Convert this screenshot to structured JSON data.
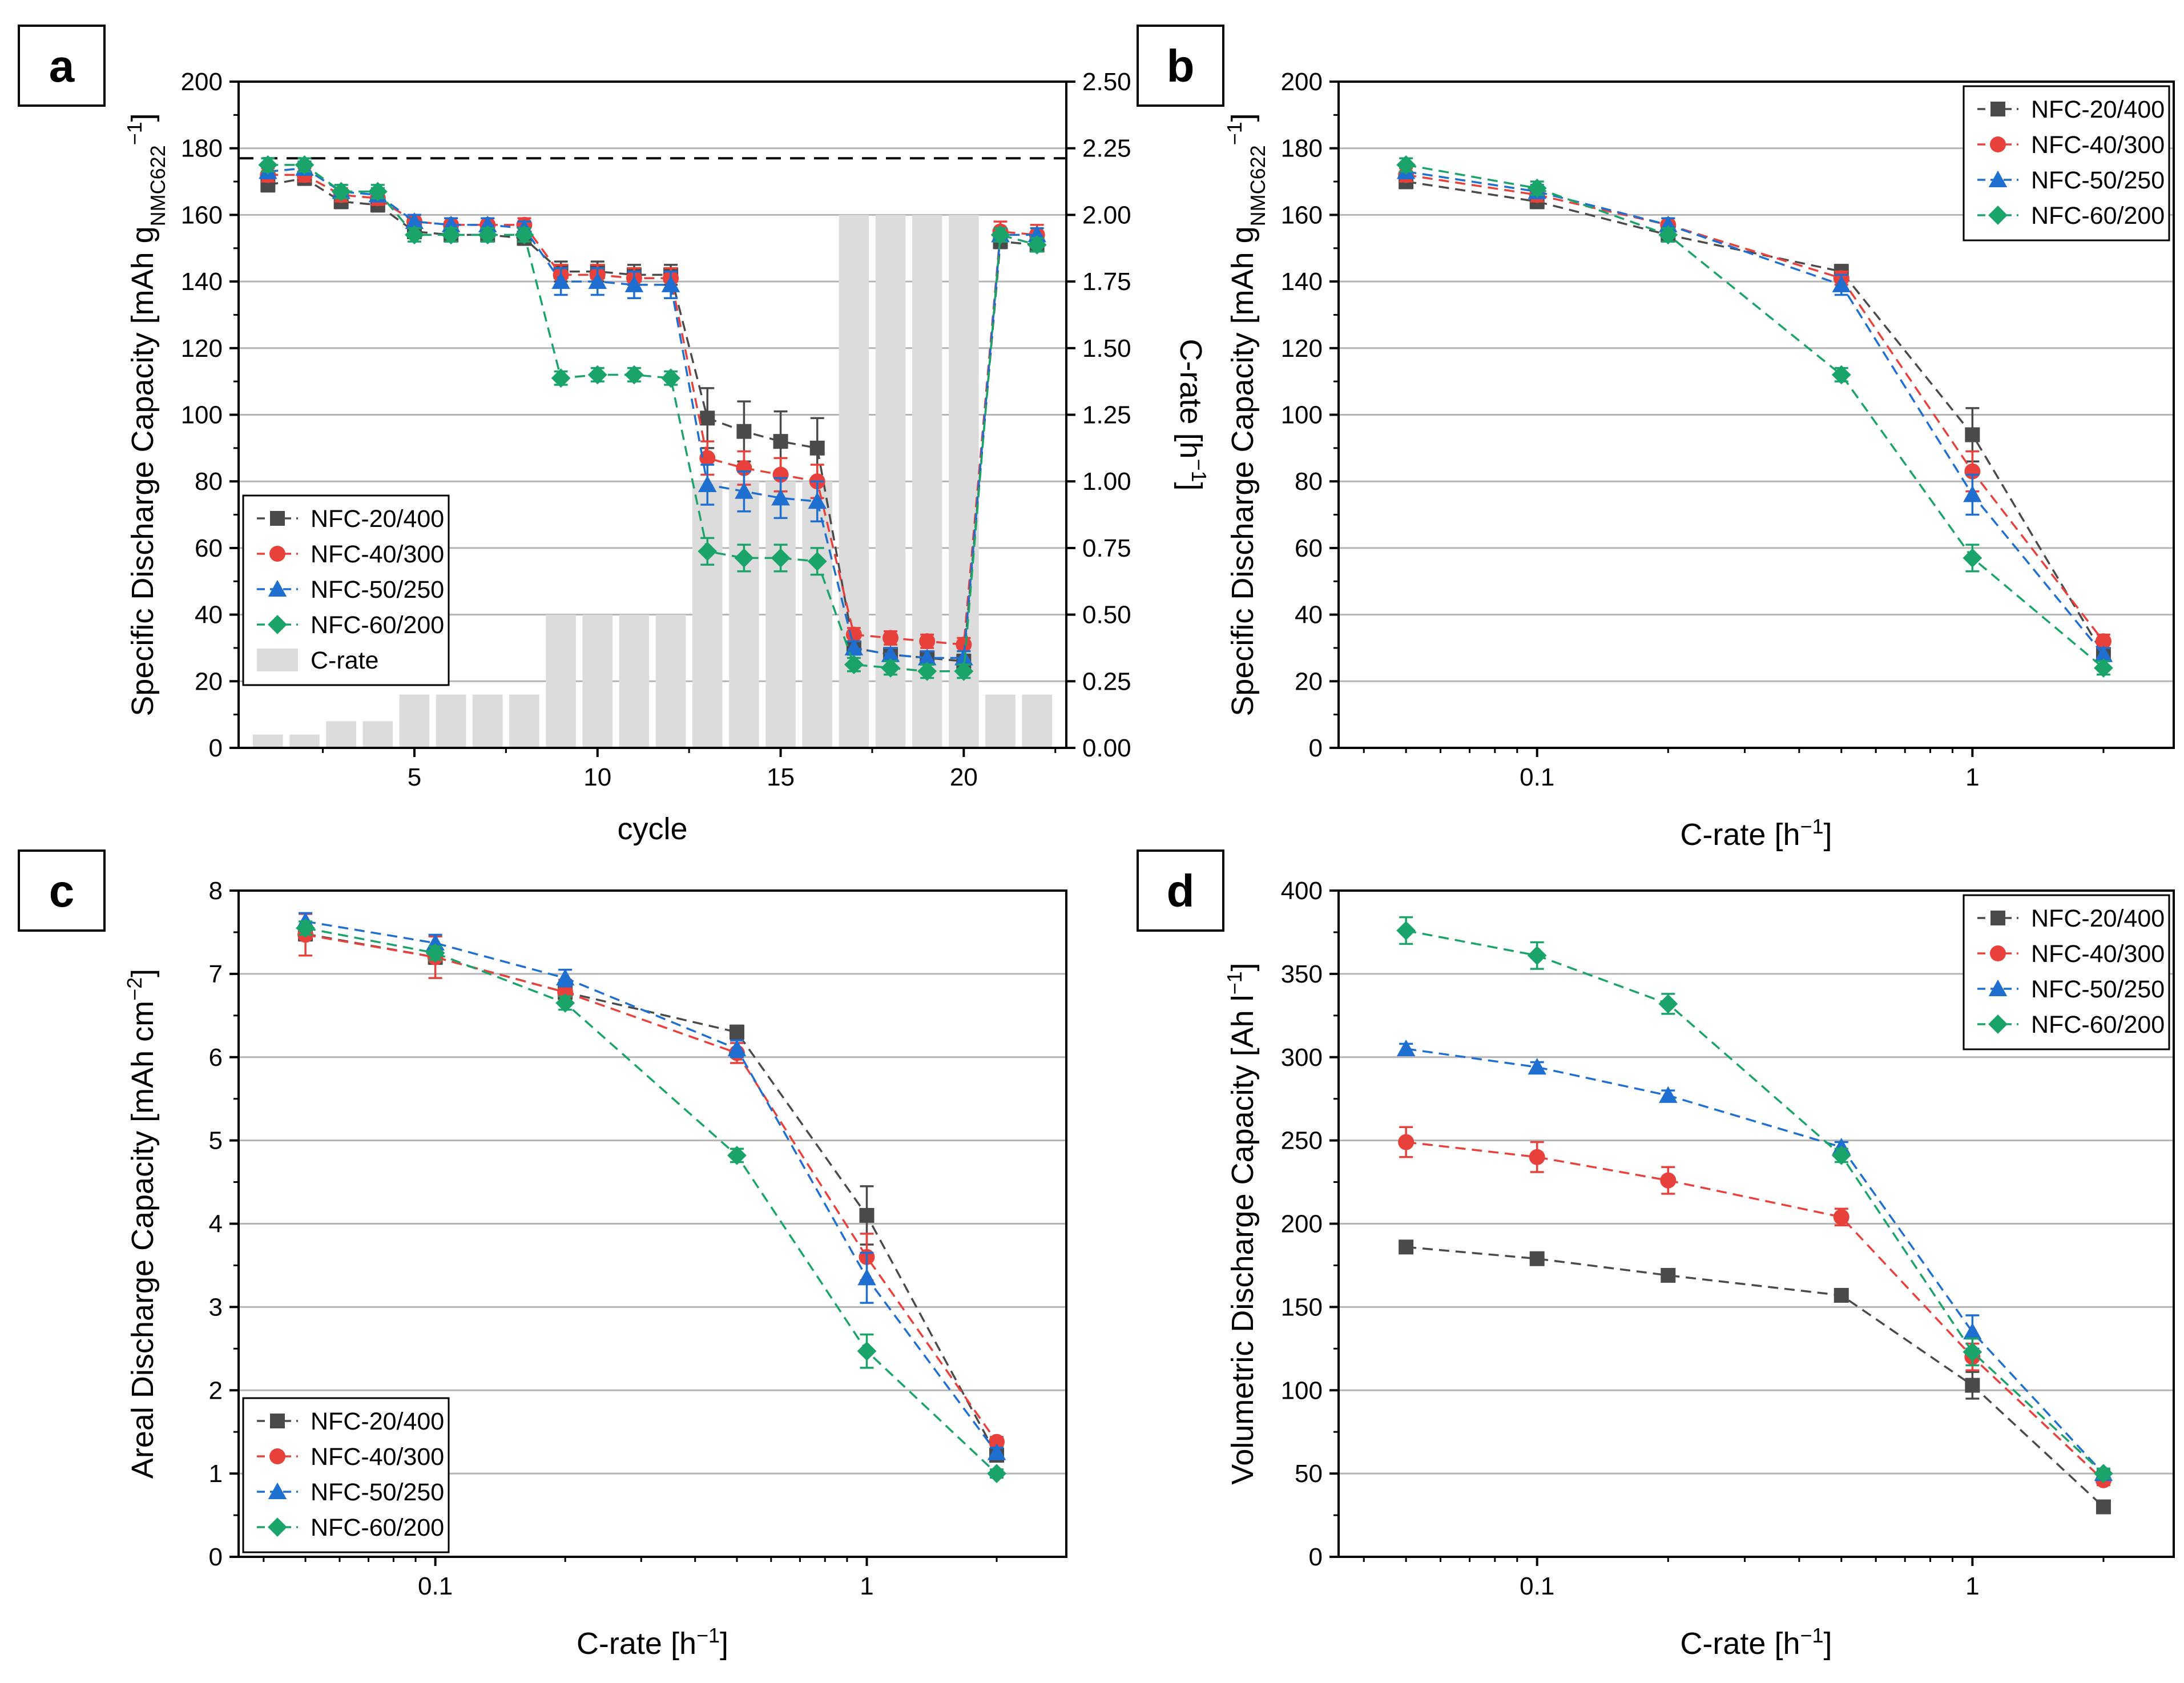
{
  "colors": {
    "NFC-20/400": "#4a4a4a",
    "NFC-40/300": "#e8403a",
    "NFC-50/250": "#1f6fd1",
    "NFC-60/200": "#1aa46a",
    "crate_bar": "#dcdcdc",
    "grid": "#b4b4b4"
  },
  "markers": {
    "NFC-20/400": "square",
    "NFC-40/300": "circle",
    "NFC-50/250": "triangle",
    "NFC-60/200": "diamond"
  },
  "chart_data": [
    {
      "id": "a",
      "panel_label": "a",
      "type": "line",
      "xlabel": "cycle",
      "ylabel": "Specific Discharge Capacity [mAh g_NMC622^-1]",
      "ylabel_parts": {
        "main": "Specific Discharge Capacity [mAh g",
        "sub": "NMC622",
        "sup": "−1",
        "end": "]"
      },
      "y2label": "C-rate [h^-1]",
      "y2label_parts": {
        "main": "C-rate [h",
        "sup": "−1",
        "end": "]"
      },
      "xscale": "linear",
      "xlim": [
        0.2,
        22.8
      ],
      "ylim": [
        0,
        200
      ],
      "y2lim": [
        0,
        2.5
      ],
      "xticks": [
        5,
        10,
        15,
        20
      ],
      "xtick_labels": [
        "5",
        "10",
        "15",
        "20"
      ],
      "yticks": [
        0,
        20,
        40,
        60,
        80,
        100,
        120,
        140,
        160,
        180,
        200
      ],
      "ytick_labels": [
        "0",
        "20",
        "40",
        "60",
        "80",
        "100",
        "120",
        "140",
        "160",
        "180",
        "200"
      ],
      "y2ticks": [
        0,
        0.25,
        0.5,
        0.75,
        1.0,
        1.25,
        1.5,
        1.75,
        2.0,
        2.25,
        2.5
      ],
      "y2tick_labels": [
        "0.00",
        "0.25",
        "0.50",
        "0.75",
        "1.00",
        "1.25",
        "1.50",
        "1.75",
        "2.00",
        "2.25",
        "2.50"
      ],
      "legend_position": "bottom-left",
      "legend_labels": [
        "NFC-20/400",
        "NFC-40/300",
        "NFC-50/250",
        "NFC-60/200",
        "C-rate"
      ],
      "reference_line": 177,
      "bars": {
        "name": "C-rate",
        "x": [
          1,
          2,
          3,
          4,
          5,
          6,
          7,
          8,
          9,
          10,
          11,
          12,
          13,
          14,
          15,
          16,
          17,
          18,
          19,
          20,
          21,
          22
        ],
        "values": [
          0.05,
          0.05,
          0.1,
          0.1,
          0.2,
          0.2,
          0.2,
          0.2,
          0.5,
          0.5,
          0.5,
          0.5,
          1,
          1,
          1,
          1,
          2,
          2,
          2,
          2,
          0.2,
          0.2
        ]
      },
      "x": [
        1,
        2,
        3,
        4,
        5,
        6,
        7,
        8,
        9,
        10,
        11,
        12,
        13,
        14,
        15,
        16,
        17,
        18,
        19,
        20,
        21,
        22
      ],
      "series": [
        {
          "name": "NFC-20/400",
          "values": [
            169,
            171,
            164,
            163,
            155,
            154,
            154,
            153,
            143,
            143,
            142,
            142,
            99,
            95,
            92,
            90,
            30,
            28,
            27,
            26,
            152,
            151
          ],
          "errors": [
            2,
            2,
            2,
            2,
            2,
            2,
            2,
            2,
            3,
            3,
            3,
            3,
            9,
            9,
            9,
            9,
            2,
            2,
            2,
            2,
            2,
            2
          ]
        },
        {
          "name": "NFC-40/300",
          "values": [
            172,
            172,
            166,
            165,
            158,
            157,
            157,
            157,
            142,
            142,
            141,
            141,
            87,
            84,
            82,
            80,
            34,
            33,
            32,
            31,
            155,
            154
          ],
          "errors": [
            2,
            2,
            2,
            2,
            2,
            2,
            2,
            2,
            3,
            3,
            3,
            3,
            5,
            5,
            5,
            5,
            2,
            2,
            2,
            2,
            3,
            3
          ]
        },
        {
          "name": "NFC-50/250",
          "values": [
            173,
            174,
            167,
            166,
            158,
            157,
            157,
            156,
            140,
            140,
            139,
            139,
            79,
            77,
            75,
            74,
            30,
            28,
            27,
            27,
            154,
            154
          ],
          "errors": [
            2,
            2,
            2,
            2,
            2,
            2,
            2,
            2,
            4,
            4,
            4,
            4,
            6,
            6,
            6,
            6,
            2,
            2,
            2,
            2,
            2,
            2
          ]
        },
        {
          "name": "NFC-60/200",
          "values": [
            175,
            175,
            167,
            167,
            154,
            154,
            154,
            154,
            111,
            112,
            112,
            111,
            59,
            57,
            57,
            56,
            25,
            24,
            23,
            23,
            154,
            151
          ],
          "errors": [
            2,
            2,
            2,
            2,
            2,
            2,
            2,
            2,
            2,
            2,
            2,
            2,
            4,
            4,
            4,
            4,
            2,
            2,
            2,
            2,
            2,
            2
          ]
        }
      ]
    },
    {
      "id": "b",
      "panel_label": "b",
      "type": "line",
      "xlabel": "C-rate [h^-1]",
      "xlabel_parts": {
        "main": "C-rate [h",
        "sup": "−1",
        "end": "]"
      },
      "ylabel": "Specific Discharge Capacity [mAh g_NMC622^-1]",
      "ylabel_parts": {
        "main": "Specific Discharge Capacity [mAh g",
        "sub": "NMC622",
        "sup": "−1",
        "end": "]"
      },
      "xscale": "log",
      "xlim": [
        0.035,
        2.9
      ],
      "ylim": [
        0,
        200
      ],
      "xticks": [
        0.1,
        1
      ],
      "xtick_labels": [
        "0.1",
        "1"
      ],
      "yticks": [
        0,
        20,
        40,
        60,
        80,
        100,
        120,
        140,
        160,
        180,
        200
      ],
      "ytick_labels": [
        "0",
        "20",
        "40",
        "60",
        "80",
        "100",
        "120",
        "140",
        "160",
        "180",
        "200"
      ],
      "legend_position": "top-right",
      "legend_labels": [
        "NFC-20/400",
        "NFC-40/300",
        "NFC-50/250",
        "NFC-60/200"
      ],
      "x": [
        0.05,
        0.1,
        0.2,
        0.5,
        1,
        2
      ],
      "series": [
        {
          "name": "NFC-20/400",
          "values": [
            170,
            164,
            154,
            143,
            94,
            28
          ],
          "errors": [
            2,
            2,
            2,
            2,
            8,
            2
          ]
        },
        {
          "name": "NFC-40/300",
          "values": [
            172,
            166,
            157,
            141,
            83,
            32
          ],
          "errors": [
            2,
            2,
            2,
            2,
            6,
            2
          ]
        },
        {
          "name": "NFC-50/250",
          "values": [
            173,
            167,
            157,
            139,
            76,
            28
          ],
          "errors": [
            2,
            2,
            2,
            3,
            6,
            2
          ]
        },
        {
          "name": "NFC-60/200",
          "values": [
            175,
            168,
            154,
            112,
            57,
            24
          ],
          "errors": [
            2,
            2,
            2,
            2,
            4,
            2
          ]
        }
      ]
    },
    {
      "id": "c",
      "panel_label": "c",
      "type": "line",
      "xlabel": "C-rate [h^-1]",
      "xlabel_parts": {
        "main": "C-rate [h",
        "sup": "−1",
        "end": "]"
      },
      "ylabel": "Areal Discharge Capacity [mAh cm^-2]",
      "ylabel_parts": {
        "main": "Areal Discharge Capacity [mAh cm",
        "sup": "−2",
        "end": "]"
      },
      "xscale": "log",
      "xlim": [
        0.035,
        2.9
      ],
      "ylim": [
        0,
        8
      ],
      "xticks": [
        0.1,
        1
      ],
      "xtick_labels": [
        "0.1",
        "1"
      ],
      "yticks": [
        0,
        1,
        2,
        3,
        4,
        5,
        6,
        7,
        8
      ],
      "ytick_labels": [
        "0",
        "1",
        "2",
        "3",
        "4",
        "5",
        "6",
        "7",
        "8"
      ],
      "legend_position": "bottom-left",
      "legend_labels": [
        "NFC-20/400",
        "NFC-40/300",
        "NFC-50/250",
        "NFC-60/200"
      ],
      "x": [
        0.05,
        0.1,
        0.2,
        0.5,
        1,
        2
      ],
      "series": [
        {
          "name": "NFC-20/400",
          "values": [
            7.48,
            7.2,
            6.78,
            6.3,
            4.1,
            1.22
          ],
          "errors": [
            0.08,
            0.08,
            0.08,
            0.08,
            0.35,
            0.06
          ]
        },
        {
          "name": "NFC-40/300",
          "values": [
            7.47,
            7.2,
            6.78,
            6.05,
            3.6,
            1.38
          ],
          "errors": [
            0.25,
            0.25,
            0.15,
            0.12,
            0.28,
            0.06
          ]
        },
        {
          "name": "NFC-50/250",
          "values": [
            7.63,
            7.37,
            6.95,
            6.1,
            3.35,
            1.25
          ],
          "errors": [
            0.1,
            0.1,
            0.1,
            0.1,
            0.3,
            0.06
          ]
        },
        {
          "name": "NFC-60/200",
          "values": [
            7.55,
            7.25,
            6.65,
            4.82,
            2.47,
            1.0
          ],
          "errors": [
            0.08,
            0.08,
            0.08,
            0.08,
            0.2,
            0.05
          ]
        }
      ]
    },
    {
      "id": "d",
      "panel_label": "d",
      "type": "line",
      "xlabel": "C-rate [h^-1]",
      "xlabel_parts": {
        "main": "C-rate [h",
        "sup": "−1",
        "end": "]"
      },
      "ylabel": "Volumetric Discharge Capacity [Ah l^-1]",
      "ylabel_parts": {
        "main": "Volumetric Discharge Capacity [Ah l",
        "sup": "−1",
        "end": "]"
      },
      "xscale": "log",
      "xlim": [
        0.035,
        2.9
      ],
      "ylim": [
        0,
        400
      ],
      "xticks": [
        0.1,
        1
      ],
      "xtick_labels": [
        "0.1",
        "1"
      ],
      "yticks": [
        0,
        50,
        100,
        150,
        200,
        250,
        300,
        350,
        400
      ],
      "ytick_labels": [
        "0",
        "50",
        "100",
        "150",
        "200",
        "250",
        "300",
        "350",
        "400"
      ],
      "legend_position": "top-right",
      "legend_labels": [
        "NFC-20/400",
        "NFC-40/300",
        "NFC-50/250",
        "NFC-60/200"
      ],
      "x": [
        0.05,
        0.1,
        0.2,
        0.5,
        1,
        2
      ],
      "series": [
        {
          "name": "NFC-20/400",
          "values": [
            186,
            179,
            169,
            157,
            103,
            30
          ],
          "errors": [
            3,
            3,
            3,
            3,
            8,
            2
          ]
        },
        {
          "name": "NFC-40/300",
          "values": [
            249,
            240,
            226,
            204,
            120,
            46
          ],
          "errors": [
            9,
            9,
            8,
            5,
            8,
            3
          ]
        },
        {
          "name": "NFC-50/250",
          "values": [
            305,
            294,
            277,
            246,
            135,
            50
          ],
          "errors": [
            3,
            3,
            3,
            3,
            10,
            2
          ]
        },
        {
          "name": "NFC-60/200",
          "values": [
            376,
            361,
            332,
            241,
            123,
            50
          ],
          "errors": [
            8,
            8,
            6,
            4,
            8,
            3
          ]
        }
      ]
    }
  ]
}
